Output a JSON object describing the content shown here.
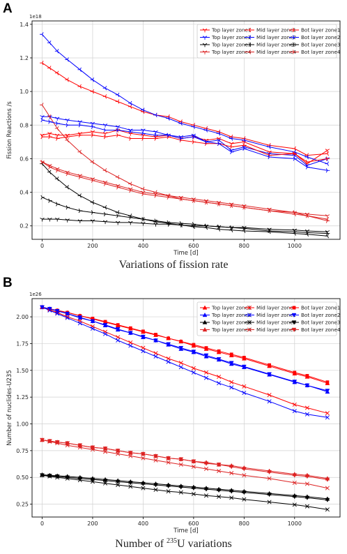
{
  "panels": [
    {
      "label": "A",
      "caption": "Variations of fission rate",
      "chart_data": {
        "type": "line",
        "xlabel": "Time [d]",
        "ylabel": "Fission Reactions /s",
        "y_multiplier": "1e18",
        "xlim": [
          -40,
          1180
        ],
        "ylim": [
          0.12,
          1.42
        ],
        "x_ticks": [
          0,
          200,
          400,
          600,
          800,
          1000
        ],
        "x_tick_labels": [
          "0",
          "200",
          "400",
          "600",
          "800",
          "1000"
        ],
        "y_ticks": [
          0.2,
          0.4,
          0.6,
          0.8,
          1.0,
          1.2,
          1.4
        ],
        "y_tick_labels": [
          "0.2",
          "0.4",
          "0.6",
          "0.8",
          "1.0",
          "1.2",
          "1.4"
        ],
        "grid": true,
        "legend_position": "top-right",
        "x": [
          0,
          30,
          60,
          100,
          150,
          200,
          250,
          300,
          350,
          400,
          450,
          500,
          550,
          600,
          650,
          700,
          750,
          800,
          900,
          1000,
          1050,
          1130
        ],
        "series": [
          {
            "name": "Top layer zone1",
            "color": "#ff0000",
            "marker": "tri_down",
            "values": [
              0.74,
              0.75,
              0.74,
              0.74,
              0.75,
              0.76,
              0.75,
              0.77,
              0.75,
              0.74,
              0.73,
              0.74,
              0.72,
              0.73,
              0.71,
              0.72,
              0.69,
              0.7,
              0.64,
              0.63,
              0.57,
              0.65
            ]
          },
          {
            "name": "Top layer zone2",
            "color": "#0000ff",
            "marker": "tri_down",
            "values": [
              0.85,
              0.85,
              0.84,
              0.83,
              0.82,
              0.81,
              0.8,
              0.79,
              0.77,
              0.77,
              0.76,
              0.74,
              0.73,
              0.74,
              0.7,
              0.71,
              0.65,
              0.67,
              0.63,
              0.62,
              0.56,
              0.6
            ]
          },
          {
            "name": "Top layer zone3",
            "color": "#000000",
            "marker": "tri_down",
            "values": [
              0.24,
              0.24,
              0.24,
              0.235,
              0.23,
              0.23,
              0.225,
              0.22,
              0.22,
              0.215,
              0.21,
              0.21,
              0.205,
              0.2,
              0.2,
              0.195,
              0.19,
              0.19,
              0.18,
              0.175,
              0.17,
              0.165
            ]
          },
          {
            "name": "Top layer zone4",
            "color": "#dd2222",
            "marker": "tri_down",
            "values": [
              0.58,
              0.56,
              0.54,
              0.52,
              0.5,
              0.48,
              0.46,
              0.44,
              0.42,
              0.4,
              0.39,
              0.38,
              0.37,
              0.36,
              0.35,
              0.34,
              0.33,
              0.32,
              0.3,
              0.28,
              0.27,
              0.26
            ]
          },
          {
            "name": "Mid layer zone1",
            "color": "#ff0000",
            "marker": "tri_left",
            "values": [
              1.17,
              1.14,
              1.11,
              1.07,
              1.03,
              1.0,
              0.97,
              0.94,
              0.91,
              0.88,
              0.86,
              0.85,
              0.82,
              0.8,
              0.78,
              0.76,
              0.73,
              0.72,
              0.68,
              0.66,
              0.62,
              0.63
            ]
          },
          {
            "name": "Mid layer zone2",
            "color": "#0000ff",
            "marker": "tri_left",
            "values": [
              1.34,
              1.29,
              1.24,
              1.19,
              1.13,
              1.07,
              1.02,
              0.98,
              0.93,
              0.89,
              0.86,
              0.84,
              0.81,
              0.79,
              0.77,
              0.75,
              0.72,
              0.71,
              0.67,
              0.64,
              0.61,
              0.57
            ]
          },
          {
            "name": "Mid layer zone3",
            "color": "#000000",
            "marker": "tri_left",
            "values": [
              0.57,
              0.52,
              0.48,
              0.43,
              0.38,
              0.34,
              0.31,
              0.28,
              0.26,
              0.24,
              0.225,
              0.215,
              0.205,
              0.195,
              0.19,
              0.18,
              0.175,
              0.17,
              0.165,
              0.155,
              0.15,
              0.14
            ]
          },
          {
            "name": "Mid layer zone4",
            "color": "#dd2222",
            "marker": "tri_left",
            "values": [
              0.92,
              0.85,
              0.78,
              0.71,
              0.64,
              0.58,
              0.53,
              0.49,
              0.45,
              0.42,
              0.4,
              0.38,
              0.36,
              0.35,
              0.34,
              0.33,
              0.32,
              0.31,
              0.29,
              0.27,
              0.26,
              0.24
            ]
          },
          {
            "name": "Bot layer zone1",
            "color": "#ff0000",
            "marker": "tri_right",
            "values": [
              0.73,
              0.73,
              0.72,
              0.73,
              0.74,
              0.74,
              0.73,
              0.74,
              0.72,
              0.72,
              0.72,
              0.73,
              0.71,
              0.7,
              0.69,
              0.69,
              0.67,
              0.68,
              0.62,
              0.63,
              0.58,
              0.6
            ]
          },
          {
            "name": "Bot layer zone2",
            "color": "#0000ff",
            "marker": "tri_right",
            "values": [
              0.83,
              0.82,
              0.81,
              0.8,
              0.8,
              0.79,
              0.77,
              0.77,
              0.76,
              0.75,
              0.74,
              0.74,
              0.72,
              0.73,
              0.7,
              0.69,
              0.64,
              0.66,
              0.61,
              0.6,
              0.55,
              0.53
            ]
          },
          {
            "name": "Bot layer zone3",
            "color": "#000000",
            "marker": "tri_right",
            "values": [
              0.37,
              0.35,
              0.33,
              0.31,
              0.29,
              0.28,
              0.27,
              0.26,
              0.25,
              0.24,
              0.23,
              0.22,
              0.215,
              0.21,
              0.2,
              0.195,
              0.19,
              0.185,
              0.17,
              0.165,
              0.16,
              0.155
            ]
          },
          {
            "name": "Bot layer zone4",
            "color": "#dd2222",
            "marker": "tri_right",
            "values": [
              0.58,
              0.55,
              0.53,
              0.51,
              0.49,
              0.47,
              0.45,
              0.43,
              0.41,
              0.39,
              0.38,
              0.37,
              0.36,
              0.35,
              0.34,
              0.33,
              0.32,
              0.31,
              0.29,
              0.28,
              0.26,
              0.23
            ]
          }
        ]
      }
    },
    {
      "label": "B",
      "caption_main": "Number of ",
      "caption_sup": "235",
      "caption_tail": "U variations",
      "chart_data": {
        "type": "line",
        "xlabel": "Time [d]",
        "ylabel": "Number of nuclides-U235",
        "y_multiplier": "1e26",
        "xlim": [
          -40,
          1180
        ],
        "ylim": [
          0.13,
          2.17
        ],
        "x_ticks": [
          0,
          200,
          400,
          600,
          800,
          1000
        ],
        "x_tick_labels": [
          "0",
          "200",
          "400",
          "600",
          "800",
          "1000"
        ],
        "y_ticks": [
          0.25,
          0.5,
          0.75,
          1.0,
          1.25,
          1.5,
          1.75,
          2.0
        ],
        "y_tick_labels": [
          "0.25",
          "0.50",
          "0.75",
          "1.00",
          "1.25",
          "1.50",
          "1.75",
          "2.00"
        ],
        "grid": true,
        "legend_position": "top-right",
        "x": [
          0,
          30,
          60,
          100,
          150,
          200,
          250,
          300,
          350,
          400,
          450,
          500,
          550,
          600,
          650,
          700,
          750,
          800,
          900,
          1000,
          1050,
          1130
        ],
        "series": [
          {
            "name": "Top layer zone1",
            "color": "#ff0000",
            "marker": "triangle_up",
            "values": [
              2.09,
              2.075,
              2.06,
              2.04,
              2.01,
              1.98,
              1.95,
              1.92,
              1.89,
              1.86,
              1.83,
              1.8,
              1.77,
              1.73,
              1.7,
              1.67,
              1.64,
              1.61,
              1.54,
              1.47,
              1.44,
              1.38
            ]
          },
          {
            "name": "Top layer zone2",
            "color": "#0000ff",
            "marker": "triangle_up",
            "values": [
              2.09,
              2.075,
              2.055,
              2.03,
              1.99,
              1.96,
              1.92,
              1.88,
              1.85,
              1.81,
              1.78,
              1.74,
              1.7,
              1.67,
              1.63,
              1.6,
              1.56,
              1.53,
              1.46,
              1.39,
              1.36,
              1.3
            ]
          },
          {
            "name": "Top layer zone3",
            "color": "#000000",
            "marker": "triangle_up",
            "values": [
              0.525,
              0.52,
              0.515,
              0.51,
              0.5,
              0.49,
              0.48,
              0.47,
              0.46,
              0.45,
              0.44,
              0.43,
              0.42,
              0.41,
              0.4,
              0.39,
              0.38,
              0.37,
              0.35,
              0.33,
              0.32,
              0.3
            ]
          },
          {
            "name": "Top layer zone4",
            "color": "#dd2222",
            "marker": "triangle_up",
            "values": [
              0.85,
              0.84,
              0.83,
              0.82,
              0.8,
              0.78,
              0.77,
              0.75,
              0.73,
              0.72,
              0.7,
              0.68,
              0.67,
              0.65,
              0.64,
              0.62,
              0.61,
              0.59,
              0.56,
              0.53,
              0.52,
              0.49
            ]
          },
          {
            "name": "Mid layer zone1",
            "color": "#ff0000",
            "marker": "x",
            "values": [
              2.09,
              2.065,
              2.04,
              2.0,
              1.96,
              1.91,
              1.86,
              1.81,
              1.76,
              1.71,
              1.66,
              1.61,
              1.57,
              1.52,
              1.48,
              1.44,
              1.39,
              1.35,
              1.27,
              1.18,
              1.15,
              1.1
            ]
          },
          {
            "name": "Mid layer zone2",
            "color": "#0000ff",
            "marker": "x",
            "values": [
              2.09,
              2.06,
              2.03,
              1.99,
              1.94,
              1.89,
              1.84,
              1.78,
              1.73,
              1.68,
              1.63,
              1.58,
              1.53,
              1.48,
              1.43,
              1.38,
              1.34,
              1.29,
              1.21,
              1.12,
              1.09,
              1.06
            ]
          },
          {
            "name": "Mid layer zone3",
            "color": "#000000",
            "marker": "x",
            "values": [
              0.52,
              0.51,
              0.5,
              0.49,
              0.475,
              0.46,
              0.445,
              0.43,
              0.415,
              0.4,
              0.385,
              0.37,
              0.36,
              0.345,
              0.33,
              0.32,
              0.31,
              0.295,
              0.27,
              0.245,
              0.23,
              0.2
            ]
          },
          {
            "name": "Mid layer zone4",
            "color": "#dd2222",
            "marker": "x",
            "values": [
              0.85,
              0.835,
              0.82,
              0.8,
              0.78,
              0.76,
              0.74,
              0.72,
              0.7,
              0.68,
              0.66,
              0.64,
              0.62,
              0.6,
              0.58,
              0.56,
              0.54,
              0.52,
              0.49,
              0.45,
              0.44,
              0.4
            ]
          },
          {
            "name": "Bot layer zone1",
            "color": "#ff0000",
            "marker": "square",
            "values": [
              2.09,
              2.075,
              2.06,
              2.04,
              2.01,
              1.985,
              1.955,
              1.925,
              1.895,
              1.865,
              1.835,
              1.8,
              1.77,
              1.74,
              1.71,
              1.68,
              1.65,
              1.62,
              1.55,
              1.48,
              1.45,
              1.39
            ]
          },
          {
            "name": "Bot layer zone2",
            "color": "#0000ff",
            "marker": "triangle_down",
            "values": [
              2.09,
              2.075,
              2.055,
              2.03,
              1.995,
              1.96,
              1.925,
              1.885,
              1.85,
              1.815,
              1.78,
              1.745,
              1.71,
              1.675,
              1.64,
              1.605,
              1.57,
              1.535,
              1.465,
              1.395,
              1.36,
              1.31
            ]
          },
          {
            "name": "Bot layer zone3",
            "color": "#000000",
            "marker": "triangle_down",
            "values": [
              0.52,
              0.515,
              0.51,
              0.5,
              0.49,
              0.48,
              0.47,
              0.46,
              0.45,
              0.44,
              0.43,
              0.42,
              0.41,
              0.4,
              0.39,
              0.38,
              0.37,
              0.36,
              0.34,
              0.32,
              0.31,
              0.29
            ]
          },
          {
            "name": "Bot layer zone4",
            "color": "#dd2222",
            "marker": "triangle_down",
            "values": [
              0.85,
              0.84,
              0.83,
              0.82,
              0.8,
              0.78,
              0.77,
              0.75,
              0.73,
              0.72,
              0.7,
              0.68,
              0.67,
              0.65,
              0.63,
              0.62,
              0.6,
              0.58,
              0.55,
              0.52,
              0.51,
              0.48
            ]
          }
        ]
      }
    }
  ]
}
